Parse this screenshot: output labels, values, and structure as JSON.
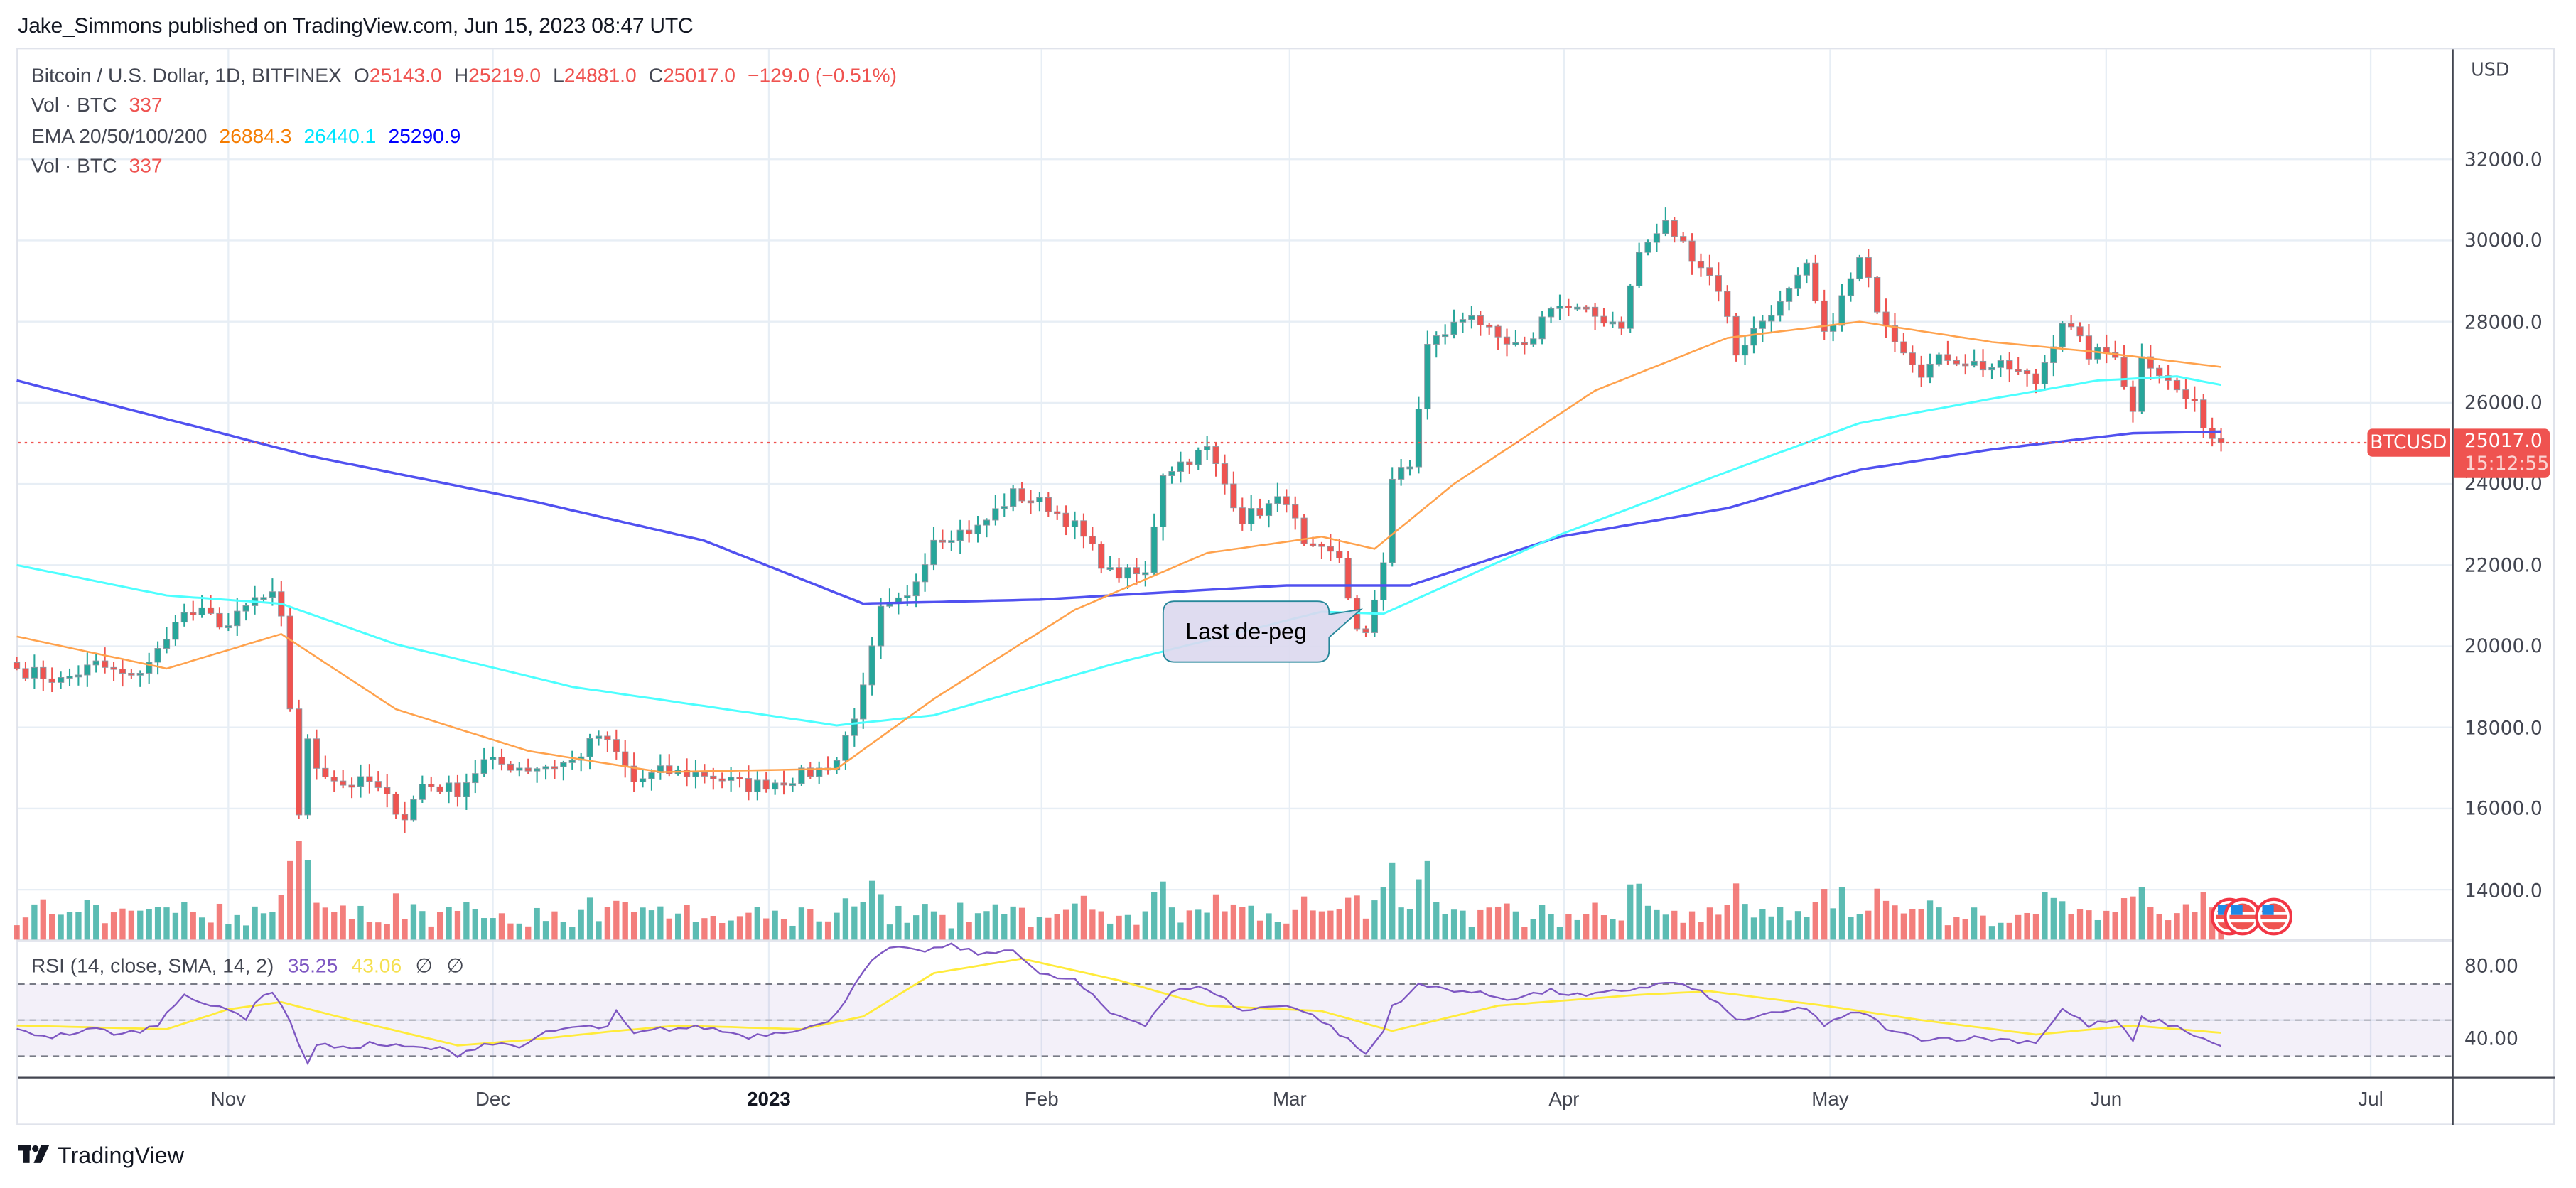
{
  "publisher": "Jake_Simmons published on TradingView.com, Jun 15, 2023 08:47 UTC",
  "legend": {
    "symbol": "Bitcoin / U.S. Dollar, 1D, BITFINEX",
    "o_label": "O",
    "o": "25143.0",
    "h_label": "H",
    "h": "25219.0",
    "l_label": "L",
    "l": "24881.0",
    "c_label": "C",
    "c": "25017.0",
    "change": "−129.0 (−0.51%)",
    "vol_label": "Vol · BTC",
    "vol": "337",
    "ema_label": "EMA 20/50/100/200",
    "ema20": "26884.3",
    "ema50": "26440.1",
    "ema100": "25290.9",
    "vol2_label": "Vol · BTC",
    "vol2": "337"
  },
  "price_axis": {
    "currency": "USD",
    "ticks": [
      "32000.0",
      "30000.0",
      "28000.0",
      "26000.0",
      "24000.0",
      "22000.0",
      "20000.0",
      "18000.0",
      "16000.0",
      "14000.0"
    ],
    "symbol_badge": "BTCUSD",
    "last_price": "25017.0",
    "countdown": "15:12:55"
  },
  "rsi": {
    "label": "RSI (14, close, SMA, 14, 2)",
    "value": "35.25",
    "sma": "43.06",
    "empty1": "∅",
    "empty2": "∅",
    "ticks": [
      "80.00",
      "40.00"
    ]
  },
  "time_axis": {
    "labels": [
      "Nov",
      "Dec",
      "2023",
      "Feb",
      "Mar",
      "Apr",
      "May",
      "Jun",
      "Jul"
    ]
  },
  "annotation": {
    "text": "Last de-peg"
  },
  "footer": {
    "brand": "TradingView"
  },
  "colors": {
    "up": "#26a69a",
    "down": "#ef5350",
    "ema20": "#ffa24d",
    "ema50": "#4dffff",
    "ema100": "#5151f0",
    "rsi": "#7e57c2",
    "rsi_sma": "#ffeb3b",
    "grid": "#e7eef5",
    "annotation_fill": "#dcd8ee",
    "annotation_border": "#26879a"
  },
  "chart_data": {
    "type": "candlestick",
    "title": "Bitcoin / U.S. Dollar, 1D, BITFINEX",
    "xlabel": "",
    "ylabel": "USD",
    "ylim": [
      13000,
      33000
    ],
    "x_ticks": [
      "Nov",
      "Dec",
      "2023",
      "Feb",
      "Mar",
      "Apr",
      "May",
      "Jun",
      "Jul"
    ],
    "y_ticks": [
      14000,
      16000,
      18000,
      20000,
      22000,
      24000,
      26000,
      28000,
      30000,
      32000
    ],
    "grid": true,
    "close_keypoints": [
      [
        "2022-10-08",
        19450
      ],
      [
        "2022-10-13",
        19150
      ],
      [
        "2022-10-17",
        19550
      ],
      [
        "2022-10-21",
        19200
      ],
      [
        "2022-10-25",
        20100
      ],
      [
        "2022-10-26",
        20750
      ],
      [
        "2022-10-29",
        20800
      ],
      [
        "2022-11-01",
        20500
      ],
      [
        "2022-11-04",
        21150
      ],
      [
        "2022-11-06",
        21200
      ],
      [
        "2022-11-07",
        20600
      ],
      [
        "2022-11-08",
        18500
      ],
      [
        "2022-11-09",
        15900
      ],
      [
        "2022-11-10",
        17600
      ],
      [
        "2022-11-11",
        17050
      ],
      [
        "2022-11-14",
        16600
      ],
      [
        "2022-11-17",
        16650
      ],
      [
        "2022-11-21",
        15800
      ],
      [
        "2022-11-23",
        16600
      ],
      [
        "2022-11-27",
        16450
      ],
      [
        "2022-11-30",
        17150
      ],
      [
        "2022-12-05",
        17000
      ],
      [
        "2022-12-10",
        17150
      ],
      [
        "2022-12-13",
        17800
      ],
      [
        "2022-12-15",
        17350
      ],
      [
        "2022-12-17",
        16650
      ],
      [
        "2022-12-20",
        16900
      ],
      [
        "2022-12-25",
        16850
      ],
      [
        "2022-12-30",
        16550
      ],
      [
        "2023-01-03",
        16700
      ],
      [
        "2023-01-07",
        16950
      ],
      [
        "2023-01-09",
        17200
      ],
      [
        "2023-01-12",
        18900
      ],
      [
        "2023-01-14",
        20850
      ],
      [
        "2023-01-17",
        21150
      ],
      [
        "2023-01-20",
        22700
      ],
      [
        "2023-01-25",
        22900
      ],
      [
        "2023-01-29",
        23750
      ],
      [
        "2023-02-02",
        23450
      ],
      [
        "2023-02-05",
        22950
      ],
      [
        "2023-02-09",
        21800
      ],
      [
        "2023-02-13",
        21750
      ],
      [
        "2023-02-15",
        24300
      ],
      [
        "2023-02-20",
        24850
      ],
      [
        "2023-02-24",
        23150
      ],
      [
        "2023-03-01",
        23650
      ],
      [
        "2023-03-03",
        22400
      ],
      [
        "2023-03-07",
        22200
      ],
      [
        "2023-03-09",
        20350
      ],
      [
        "2023-03-10",
        20200
      ],
      [
        "2023-03-12",
        22150
      ],
      [
        "2023-03-13",
        24150
      ],
      [
        "2023-03-15",
        24400
      ],
      [
        "2023-03-17",
        27400
      ],
      [
        "2023-03-22",
        28250
      ],
      [
        "2023-03-25",
        27450
      ],
      [
        "2023-03-28",
        27300
      ],
      [
        "2023-03-31",
        28450
      ],
      [
        "2023-04-04",
        28200
      ],
      [
        "2023-04-08",
        27950
      ],
      [
        "2023-04-10",
        29700
      ],
      [
        "2023-04-13",
        30400
      ],
      [
        "2023-04-17",
        29400
      ],
      [
        "2023-04-19",
        28850
      ],
      [
        "2023-04-21",
        27250
      ],
      [
        "2023-04-25",
        28300
      ],
      [
        "2023-04-26",
        28400
      ],
      [
        "2023-04-29",
        29300
      ],
      [
        "2023-05-01",
        27600
      ],
      [
        "2023-05-05",
        29500
      ],
      [
        "2023-05-07",
        28400
      ],
      [
        "2023-05-09",
        27650
      ],
      [
        "2023-05-12",
        26800
      ],
      [
        "2023-05-15",
        27150
      ],
      [
        "2023-05-19",
        26900
      ],
      [
        "2023-05-22",
        26850
      ],
      [
        "2023-05-25",
        26500
      ],
      [
        "2023-05-28",
        28050
      ],
      [
        "2023-05-31",
        27200
      ],
      [
        "2023-06-03",
        27250
      ],
      [
        "2023-06-05",
        25750
      ],
      [
        "2023-06-06",
        27250
      ],
      [
        "2023-06-09",
        26500
      ],
      [
        "2023-06-12",
        25900
      ],
      [
        "2023-06-14",
        25150
      ],
      [
        "2023-06-15",
        25017
      ]
    ],
    "ema_keypoints": {
      "ema20": [
        [
          "2022-10-08",
          20240
        ],
        [
          "2022-10-25",
          19450
        ],
        [
          "2022-11-07",
          20300
        ],
        [
          "2022-11-20",
          18450
        ],
        [
          "2022-12-05",
          17420
        ],
        [
          "2022-12-20",
          16900
        ],
        [
          "2023-01-09",
          16980
        ],
        [
          "2023-01-20",
          18700
        ],
        [
          "2023-02-05",
          20900
        ],
        [
          "2023-02-20",
          22300
        ],
        [
          "2023-03-05",
          22700
        ],
        [
          "2023-03-11",
          22400
        ],
        [
          "2023-03-20",
          24000
        ],
        [
          "2023-04-05",
          26300
        ],
        [
          "2023-04-20",
          27600
        ],
        [
          "2023-05-05",
          28000
        ],
        [
          "2023-05-20",
          27500
        ],
        [
          "2023-06-01",
          27250
        ],
        [
          "2023-06-15",
          26884
        ]
      ],
      "ema50": [
        [
          "2022-10-08",
          22000
        ],
        [
          "2022-10-25",
          21250
        ],
        [
          "2022-11-07",
          21050
        ],
        [
          "2022-11-20",
          20050
        ],
        [
          "2022-12-10",
          19000
        ],
        [
          "2023-01-09",
          18050
        ],
        [
          "2023-01-20",
          18300
        ],
        [
          "2023-02-10",
          19600
        ],
        [
          "2023-03-05",
          20850
        ],
        [
          "2023-03-12",
          20800
        ],
        [
          "2023-04-01",
          22750
        ],
        [
          "2023-04-20",
          24300
        ],
        [
          "2023-05-05",
          25500
        ],
        [
          "2023-05-20",
          26100
        ],
        [
          "2023-06-01",
          26550
        ],
        [
          "2023-06-10",
          26650
        ],
        [
          "2023-06-15",
          26440
        ]
      ],
      "ema100": [
        [
          "2022-10-08",
          26550
        ],
        [
          "2022-10-25",
          25600
        ],
        [
          "2022-11-10",
          24700
        ],
        [
          "2022-12-05",
          23600
        ],
        [
          "2022-12-25",
          22600
        ],
        [
          "2023-01-12",
          21050
        ],
        [
          "2023-02-01",
          21150
        ],
        [
          "2023-03-01",
          21500
        ],
        [
          "2023-03-15",
          21500
        ],
        [
          "2023-04-01",
          22700
        ],
        [
          "2023-04-20",
          23400
        ],
        [
          "2023-05-05",
          24350
        ],
        [
          "2023-05-20",
          24850
        ],
        [
          "2023-06-05",
          25250
        ],
        [
          "2023-06-15",
          25290
        ]
      ]
    },
    "rsi_keypoints": [
      [
        "2022-10-08",
        44
      ],
      [
        "2022-10-12",
        41
      ],
      [
        "2022-10-17",
        45
      ],
      [
        "2022-10-20",
        42
      ],
      [
        "2022-10-24",
        47
      ],
      [
        "2022-10-25",
        55
      ],
      [
        "2022-10-27",
        65
      ],
      [
        "2022-10-29",
        58
      ],
      [
        "2022-11-01",
        57
      ],
      [
        "2022-11-03",
        51
      ],
      [
        "2022-11-05",
        65
      ],
      [
        "2022-11-06",
        66
      ],
      [
        "2022-11-08",
        50
      ],
      [
        "2022-11-09",
        35
      ],
      [
        "2022-11-10",
        27
      ],
      [
        "2022-11-11",
        37
      ],
      [
        "2022-11-14",
        34
      ],
      [
        "2022-11-17",
        37
      ],
      [
        "2022-11-21",
        35
      ],
      [
        "2022-11-25",
        34
      ],
      [
        "2022-11-27",
        31
      ],
      [
        "2022-11-30",
        37
      ],
      [
        "2022-12-05",
        36
      ],
      [
        "2022-12-07",
        43
      ],
      [
        "2022-12-10",
        46
      ],
      [
        "2022-12-14",
        46
      ],
      [
        "2022-12-15",
        54
      ],
      [
        "2022-12-17",
        42
      ],
      [
        "2022-12-20",
        45
      ],
      [
        "2022-12-25",
        46
      ],
      [
        "2022-12-30",
        41
      ],
      [
        "2023-01-03",
        44
      ],
      [
        "2023-01-08",
        48
      ],
      [
        "2023-01-10",
        62
      ],
      [
        "2023-01-12",
        78
      ],
      [
        "2023-01-15",
        90
      ],
      [
        "2023-01-18",
        88
      ],
      [
        "2023-01-22",
        91
      ],
      [
        "2023-01-26",
        86
      ],
      [
        "2023-01-29",
        90
      ],
      [
        "2023-02-01",
        75
      ],
      [
        "2023-02-05",
        72
      ],
      [
        "2023-02-09",
        54
      ],
      [
        "2023-02-13",
        48
      ],
      [
        "2023-02-16",
        66
      ],
      [
        "2023-02-20",
        68
      ],
      [
        "2023-02-24",
        55
      ],
      [
        "2023-03-01",
        59
      ],
      [
        "2023-03-05",
        50
      ],
      [
        "2023-03-09",
        35
      ],
      [
        "2023-03-10",
        31
      ],
      [
        "2023-03-12",
        44
      ],
      [
        "2023-03-13",
        58
      ],
      [
        "2023-03-16",
        69
      ],
      [
        "2023-03-20",
        67
      ],
      [
        "2023-03-26",
        62
      ],
      [
        "2023-03-31",
        66
      ],
      [
        "2023-04-04",
        63
      ],
      [
        "2023-04-10",
        68
      ],
      [
        "2023-04-14",
        71
      ],
      [
        "2023-04-18",
        63
      ],
      [
        "2023-04-21",
        50
      ],
      [
        "2023-04-25",
        53
      ],
      [
        "2023-04-29",
        57
      ],
      [
        "2023-05-01",
        47
      ],
      [
        "2023-05-05",
        55
      ],
      [
        "2023-05-09",
        43
      ],
      [
        "2023-05-12",
        40
      ],
      [
        "2023-05-19",
        40
      ],
      [
        "2023-05-25",
        38
      ],
      [
        "2023-05-28",
        56
      ],
      [
        "2023-05-31",
        47
      ],
      [
        "2023-06-03",
        50
      ],
      [
        "2023-06-05",
        38
      ],
      [
        "2023-06-06",
        51
      ],
      [
        "2023-06-09",
        48
      ],
      [
        "2023-06-12",
        42
      ],
      [
        "2023-06-15",
        35
      ]
    ],
    "rsi_sma_keypoints": [
      [
        "2022-10-08",
        47
      ],
      [
        "2022-10-25",
        45
      ],
      [
        "2022-11-01",
        56
      ],
      [
        "2022-11-07",
        60
      ],
      [
        "2022-11-15",
        50
      ],
      [
        "2022-11-27",
        36
      ],
      [
        "2022-12-05",
        39
      ],
      [
        "2022-12-15",
        44
      ],
      [
        "2022-12-22",
        47
      ],
      [
        "2023-01-05",
        45
      ],
      [
        "2023-01-12",
        52
      ],
      [
        "2023-01-20",
        76
      ],
      [
        "2023-01-30",
        84
      ],
      [
        "2023-02-10",
        72
      ],
      [
        "2023-02-20",
        58
      ],
      [
        "2023-03-05",
        55
      ],
      [
        "2023-03-13",
        44
      ],
      [
        "2023-03-25",
        58
      ],
      [
        "2023-04-10",
        64
      ],
      [
        "2023-04-18",
        66
      ],
      [
        "2023-05-01",
        58
      ],
      [
        "2023-05-12",
        50
      ],
      [
        "2023-05-25",
        42
      ],
      [
        "2023-06-05",
        47
      ],
      [
        "2023-06-15",
        43
      ]
    ],
    "rsi_ylim": [
      20,
      95
    ],
    "rsi_levels": [
      70,
      50,
      30
    ],
    "annotations": [
      {
        "text": "Last de-peg",
        "date": "2023-03-10",
        "price": 20350
      }
    ],
    "last": {
      "open": 25143.0,
      "high": 25219.0,
      "low": 24881.0,
      "close": 25017.0,
      "change": -129.0,
      "change_pct": -0.51,
      "volume": 337
    }
  }
}
